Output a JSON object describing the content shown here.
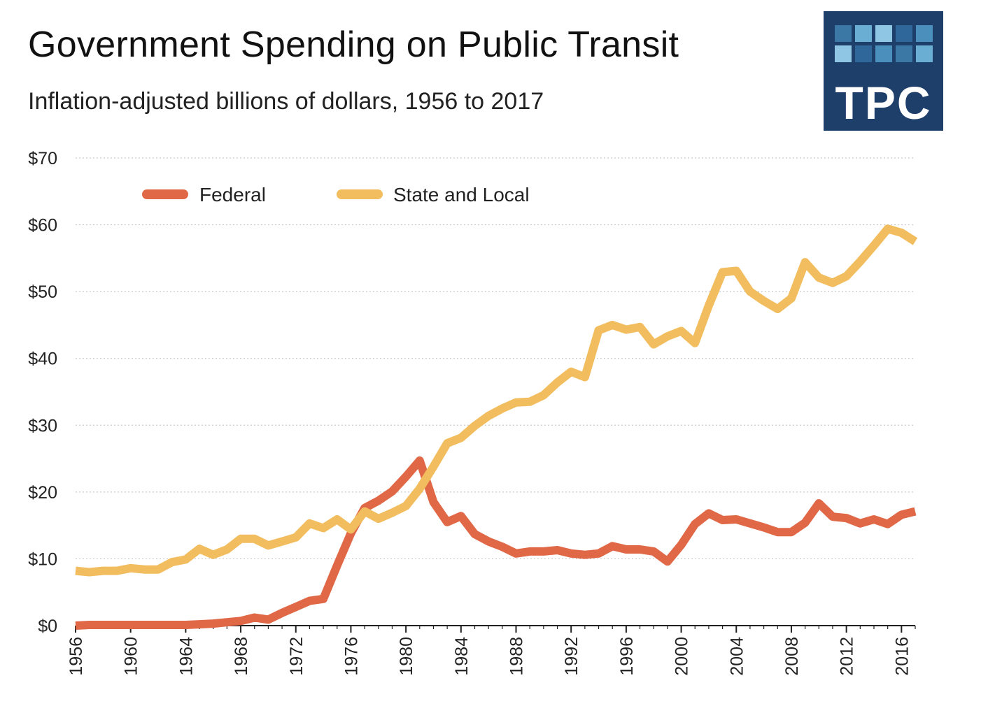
{
  "header": {
    "title": "Government Spending on Public Transit",
    "subtitle": "Inflation-adjusted billions of dollars, 1956 to 2017"
  },
  "logo": {
    "text": "TPC",
    "background": "#1f3f6b",
    "tile_colors": [
      "#3b78a5",
      "#6aaed3",
      "#8ec6e3",
      "#2f679a",
      "#4b8fbd"
    ]
  },
  "chart_data": {
    "type": "line",
    "title": "Government Spending on Public Transit",
    "subtitle": "Inflation-adjusted billions of dollars, 1956 to 2017",
    "xlabel": "",
    "ylabel": "",
    "xlim": [
      1956,
      2017
    ],
    "ylim": [
      0,
      70
    ],
    "y_ticks": [
      0,
      10,
      20,
      30,
      40,
      50,
      60,
      70
    ],
    "y_tick_labels": [
      "$0",
      "$10",
      "$20",
      "$30",
      "$40",
      "$50",
      "$60",
      "$70"
    ],
    "x_ticks": [
      1956,
      1960,
      1964,
      1968,
      1972,
      1976,
      1980,
      1984,
      1988,
      1992,
      1996,
      2000,
      2004,
      2008,
      2012,
      2016
    ],
    "x_tick_labels": [
      "1956",
      "1960",
      "1964",
      "1968",
      "1972",
      "1976",
      "1980",
      "1984",
      "1988",
      "1992",
      "1996",
      "2000",
      "2004",
      "2008",
      "2012",
      "2016"
    ],
    "grid": "horizontal dotted",
    "legend_position": "top-left",
    "x": [
      1956,
      1957,
      1958,
      1959,
      1960,
      1961,
      1962,
      1963,
      1964,
      1965,
      1966,
      1967,
      1968,
      1969,
      1970,
      1971,
      1972,
      1973,
      1974,
      1975,
      1976,
      1977,
      1978,
      1979,
      1980,
      1981,
      1982,
      1983,
      1984,
      1985,
      1986,
      1987,
      1988,
      1989,
      1990,
      1991,
      1992,
      1993,
      1994,
      1995,
      1996,
      1997,
      1998,
      1999,
      2000,
      2001,
      2002,
      2003,
      2004,
      2005,
      2006,
      2007,
      2008,
      2009,
      2010,
      2011,
      2012,
      2013,
      2014,
      2015,
      2016,
      2017
    ],
    "series": [
      {
        "name": "Federal",
        "color": "#e06847",
        "values": [
          0.0,
          0.1,
          0.1,
          0.1,
          0.1,
          0.1,
          0.1,
          0.1,
          0.1,
          0.2,
          0.3,
          0.5,
          0.7,
          1.2,
          0.9,
          1.9,
          2.8,
          3.7,
          4.0,
          9.0,
          13.8,
          17.6,
          18.7,
          20.1,
          22.3,
          24.7,
          18.5,
          15.5,
          16.4,
          13.7,
          12.6,
          11.8,
          10.8,
          11.1,
          11.1,
          11.3,
          10.8,
          10.6,
          10.8,
          11.9,
          11.4,
          11.4,
          11.1,
          9.6,
          12.1,
          15.2,
          16.8,
          15.8,
          15.9,
          15.3,
          14.7,
          14.0,
          14.0,
          15.4,
          18.3,
          16.3,
          16.1,
          15.3,
          15.9,
          15.2,
          16.6,
          17.1
        ]
      },
      {
        "name": "State and Local",
        "color": "#f2bd5e",
        "values": [
          8.2,
          8.0,
          8.2,
          8.2,
          8.6,
          8.4,
          8.4,
          9.5,
          9.9,
          11.5,
          10.6,
          11.4,
          13.0,
          13.0,
          12.0,
          12.6,
          13.2,
          15.3,
          14.6,
          15.9,
          14.4,
          17.1,
          16.0,
          16.9,
          17.9,
          20.5,
          23.8,
          27.3,
          28.1,
          29.9,
          31.4,
          32.5,
          33.4,
          33.5,
          34.5,
          36.4,
          38.0,
          37.2,
          44.2,
          45.0,
          44.3,
          44.7,
          42.1,
          43.3,
          44.1,
          42.3,
          47.9,
          52.9,
          53.1,
          50.0,
          48.6,
          47.4,
          49.0,
          54.4,
          52.1,
          51.3,
          52.3,
          54.5,
          56.9,
          59.4,
          58.8,
          57.5
        ]
      }
    ]
  }
}
